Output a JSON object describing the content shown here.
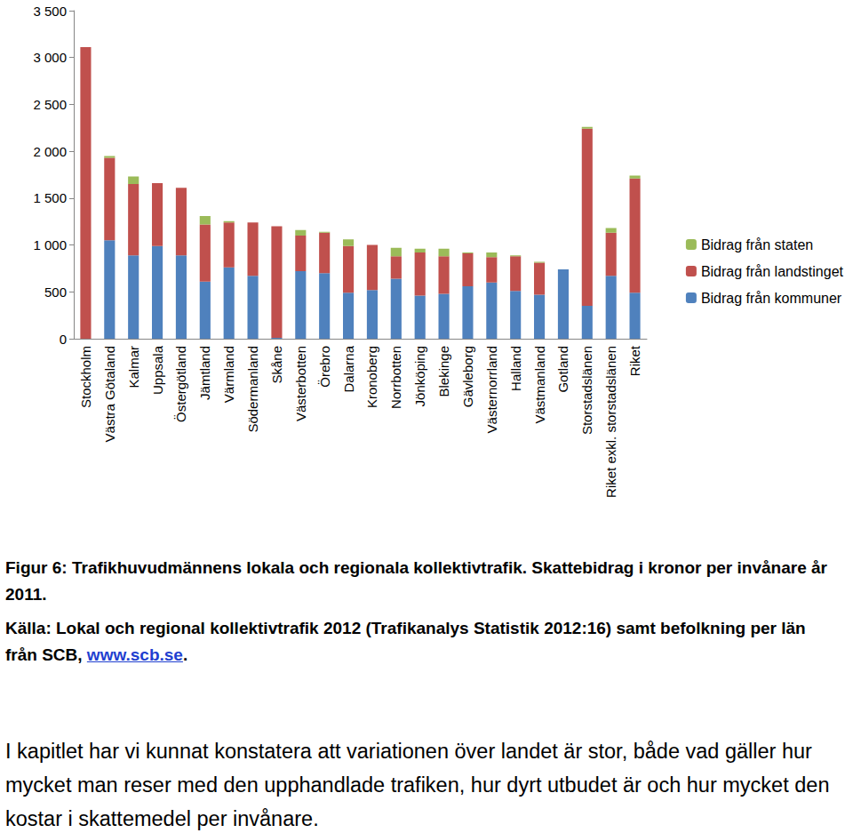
{
  "chart_data": {
    "type": "bar",
    "stacked": true,
    "grid": false,
    "legend": "right",
    "categories": [
      "Stockholm",
      "Västra Götaland",
      "Kalmar",
      "Uppsala",
      "Östergötland",
      "Jämtland",
      "Värmland",
      "Södermanland",
      "Skåne",
      "Västerbotten",
      "Örebro",
      "Dalarna",
      "Kronoberg",
      "Norrbotten",
      "Jönköping",
      "Blekinge",
      "Gävleborg",
      "Västernorrland",
      "Halland",
      "Västmanland",
      "Gotland",
      "Storstadslänen",
      "Riket exkl. storstadslänen",
      "Riket"
    ],
    "series": [
      {
        "name": "Bidrag från kommuner",
        "color": "#4f81bd",
        "values": [
          0,
          1050,
          890,
          990,
          890,
          610,
          760,
          670,
          10,
          720,
          700,
          490,
          520,
          640,
          460,
          480,
          560,
          600,
          510,
          470,
          740,
          350,
          670,
          490
        ]
      },
      {
        "name": "Bidrag från landstinget",
        "color": "#c0504d",
        "values": [
          3110,
          880,
          760,
          670,
          720,
          610,
          480,
          570,
          1190,
          380,
          430,
          500,
          480,
          240,
          460,
          400,
          350,
          270,
          370,
          340,
          0,
          1890,
          460,
          1220
        ]
      },
      {
        "name": "Bidrag från staten",
        "color": "#9bbb59",
        "values": [
          0,
          20,
          80,
          0,
          0,
          90,
          15,
          0,
          0,
          60,
          10,
          70,
          0,
          90,
          40,
          80,
          10,
          50,
          10,
          10,
          0,
          20,
          50,
          30
        ]
      }
    ],
    "ylim": [
      0,
      3500
    ],
    "yticks": [
      0,
      500,
      {
        "value": 1000,
        "label": "1 000"
      },
      {
        "value": 1500,
        "label": "1 500"
      },
      {
        "value": 2000,
        "label": "2 000"
      },
      {
        "value": 2500,
        "label": "2 500"
      },
      {
        "value": 3000,
        "label": "3 000"
      },
      {
        "value": 3500,
        "label": "3 500"
      }
    ]
  },
  "caption": {
    "figure": "Figur 6: Trafikhuvudmännens lokala och regionala kollektivtrafik. Skattebidrag i kronor per invånare år 2011.",
    "source": [
      "Källa: Lokal och regional kollektivtrafik 2012 (Trafikanalys Statistik 2012:16) samt befolkning per län från SCB, ",
      "www.scb.se",
      "."
    ]
  },
  "paragraph": "I kapitlet har vi kunnat konstatera att variationen över landet är stor, både vad gäller hur mycket man reser med den upphandlade trafiken, hur dyrt utbudet är och hur mycket den kostar i skattemedel per invånare."
}
